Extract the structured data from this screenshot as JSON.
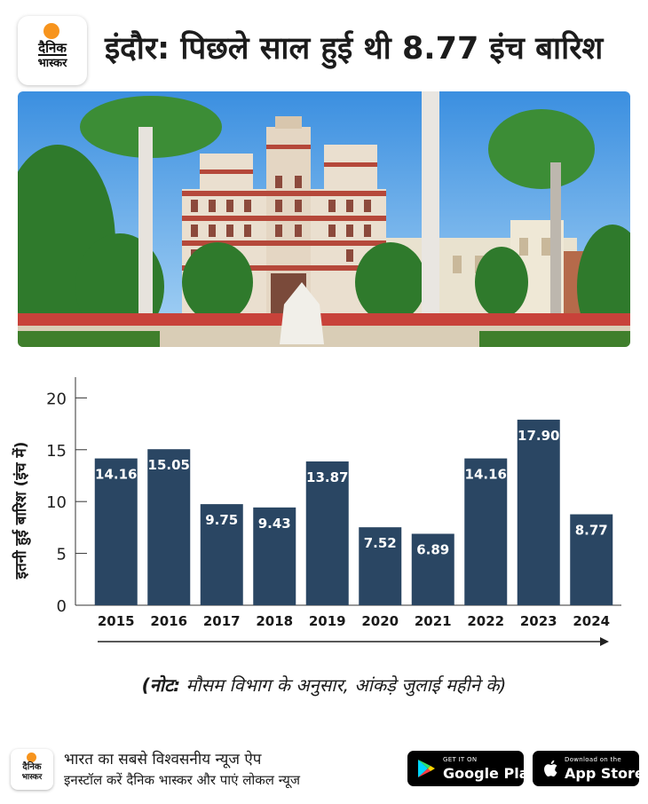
{
  "brand": {
    "name_line1": "दैनिक",
    "name_line2": "भास्कर",
    "accent": "#f7941d"
  },
  "headline": "इंदौर: पिछले साल हुई थी 8.77 इंच बारिश",
  "chart_data": {
    "type": "bar",
    "ylabel": "इतनी हुई बारिश (इंच में)",
    "ylim": [
      0,
      22
    ],
    "yticks": [
      0,
      5,
      10,
      15,
      20
    ],
    "categories": [
      "2015",
      "2016",
      "2017",
      "2018",
      "2019",
      "2020",
      "2021",
      "2022",
      "2023",
      "2024"
    ],
    "values": [
      14.16,
      15.05,
      9.75,
      9.43,
      13.87,
      7.52,
      6.89,
      14.16,
      17.9,
      8.77
    ],
    "value_labels": [
      "14.16",
      "15.05",
      "9.75",
      "9.43",
      "13.87",
      "7.52",
      "6.89",
      "14.16",
      "17.90",
      "8.77"
    ],
    "bar_color": "#2a4663"
  },
  "note": {
    "label": "(नोट:",
    "text": " मौसम विभाग के अनुसार, आंकड़े जुलाई महीने के)"
  },
  "footer": {
    "tagline1": "भारत का सबसे विश्वसनीय न्यूज ऐप",
    "tagline2": "इनस्टॉल करें दैनिक भास्कर और पाएं लोकल न्यूज",
    "google_play": {
      "small": "GET IT ON",
      "big": "Google Play"
    },
    "app_store": {
      "small": "Download on the",
      "big": "App Store"
    }
  }
}
